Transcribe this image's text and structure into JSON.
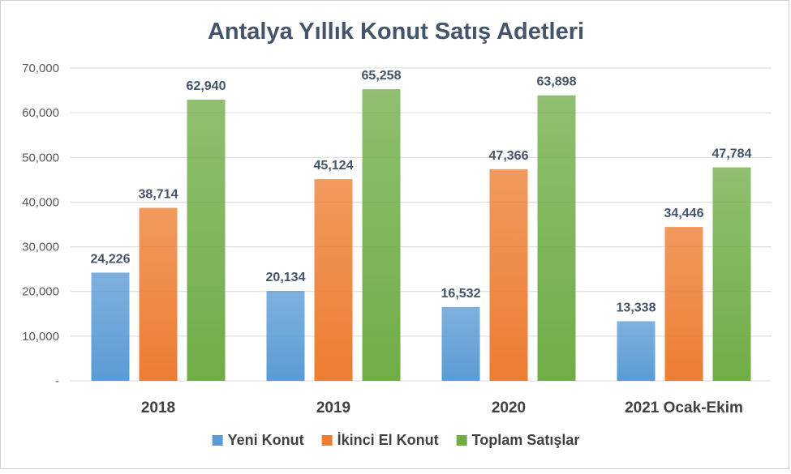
{
  "chart_data": {
    "type": "bar",
    "title": "Antalya Yıllık Konut Satış Adetleri",
    "categories": [
      "2018",
      "2019",
      "2020",
      "2021 Ocak-Ekim"
    ],
    "series": [
      {
        "name": "Yeni Konut",
        "values": [
          24226,
          20134,
          16532,
          13338
        ],
        "color": "#5b9bd5"
      },
      {
        "name": "İkinci El Konut",
        "values": [
          38714,
          45124,
          47366,
          34446
        ],
        "color": "#ed7d31"
      },
      {
        "name": "Toplam Satışlar",
        "values": [
          62940,
          65258,
          63898,
          47784
        ],
        "color": "#70ad47"
      }
    ],
    "data_labels": [
      [
        "24,226",
        "20,134",
        "16,532",
        "13,338"
      ],
      [
        "38,714",
        "45,124",
        "47,366",
        "34,446"
      ],
      [
        "62,940",
        "65,258",
        "63,898",
        "47,784"
      ]
    ],
    "yticks": [
      0,
      10000,
      20000,
      30000,
      40000,
      50000,
      60000,
      70000
    ],
    "ytick_labels": [
      "-",
      "10,000",
      "20,000",
      "30,000",
      "40,000",
      "50,000",
      "60,000",
      "70,000"
    ],
    "ylim": [
      0,
      70000
    ],
    "grid": true,
    "legend_position": "bottom"
  }
}
